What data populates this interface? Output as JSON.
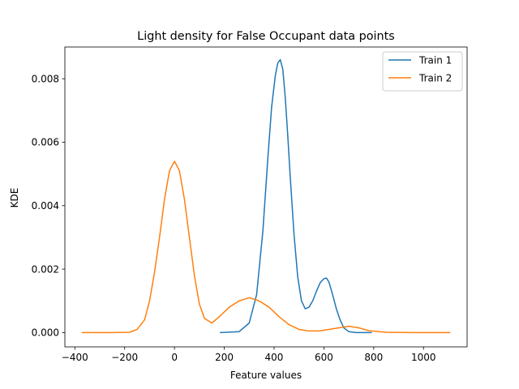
{
  "chart_data": {
    "type": "line",
    "title": "Light density for False Occupant data points",
    "xlabel": "Feature values",
    "ylabel": "KDE",
    "xlim": [
      -440,
      1175
    ],
    "ylim": [
      -0.00045,
      0.009
    ],
    "xticks": [
      -400,
      -200,
      0,
      200,
      400,
      600,
      800,
      1000
    ],
    "xtick_labels": [
      "−400",
      "−200",
      "0",
      "200",
      "400",
      "600",
      "800",
      "1000"
    ],
    "yticks": [
      0.0,
      0.002,
      0.004,
      0.006,
      0.008
    ],
    "ytick_labels": [
      "0.000",
      "0.002",
      "0.004",
      "0.006",
      "0.008"
    ],
    "grid": false,
    "legend_position": "top-right",
    "series": [
      {
        "name": "Train 1",
        "color": "#1f77b4",
        "x": [
          185,
          260,
          300,
          330,
          355,
          375,
          390,
          405,
          415,
          425,
          435,
          445,
          455,
          465,
          480,
          495,
          510,
          525,
          540,
          555,
          570,
          585,
          600,
          610,
          620,
          635,
          650,
          665,
          680,
          700,
          730,
          760,
          790
        ],
        "y": [
          0.0,
          3e-05,
          0.0003,
          0.0012,
          0.0032,
          0.0055,
          0.0071,
          0.0081,
          0.0085,
          0.0086,
          0.0083,
          0.0074,
          0.0062,
          0.0049,
          0.0031,
          0.00175,
          0.001,
          0.00075,
          0.0008,
          0.001,
          0.0013,
          0.00157,
          0.0017,
          0.00172,
          0.0016,
          0.0012,
          0.00075,
          0.0004,
          0.00015,
          3e-05,
          0.0,
          0.0,
          0.0
        ]
      },
      {
        "name": "Train 2",
        "color": "#ff7f0e",
        "x": [
          -370,
          -250,
          -180,
          -150,
          -120,
          -100,
          -80,
          -60,
          -40,
          -20,
          0,
          20,
          40,
          60,
          80,
          100,
          120,
          150,
          180,
          220,
          260,
          300,
          340,
          380,
          420,
          460,
          500,
          540,
          580,
          620,
          660,
          700,
          740,
          780,
          850,
          950,
          1105
        ],
        "y": [
          0.0,
          0.0,
          1e-05,
          0.0001,
          0.0004,
          0.001,
          0.0019,
          0.003,
          0.0042,
          0.0051,
          0.0054,
          0.0051,
          0.0042,
          0.003,
          0.0018,
          0.0009,
          0.00045,
          0.0003,
          0.0005,
          0.0008,
          0.001,
          0.0011,
          0.001,
          0.0008,
          0.0005,
          0.00025,
          0.0001,
          5e-05,
          5e-05,
          0.0001,
          0.00015,
          0.0002,
          0.00015,
          6e-05,
          1e-05,
          0.0,
          0.0
        ]
      }
    ]
  }
}
